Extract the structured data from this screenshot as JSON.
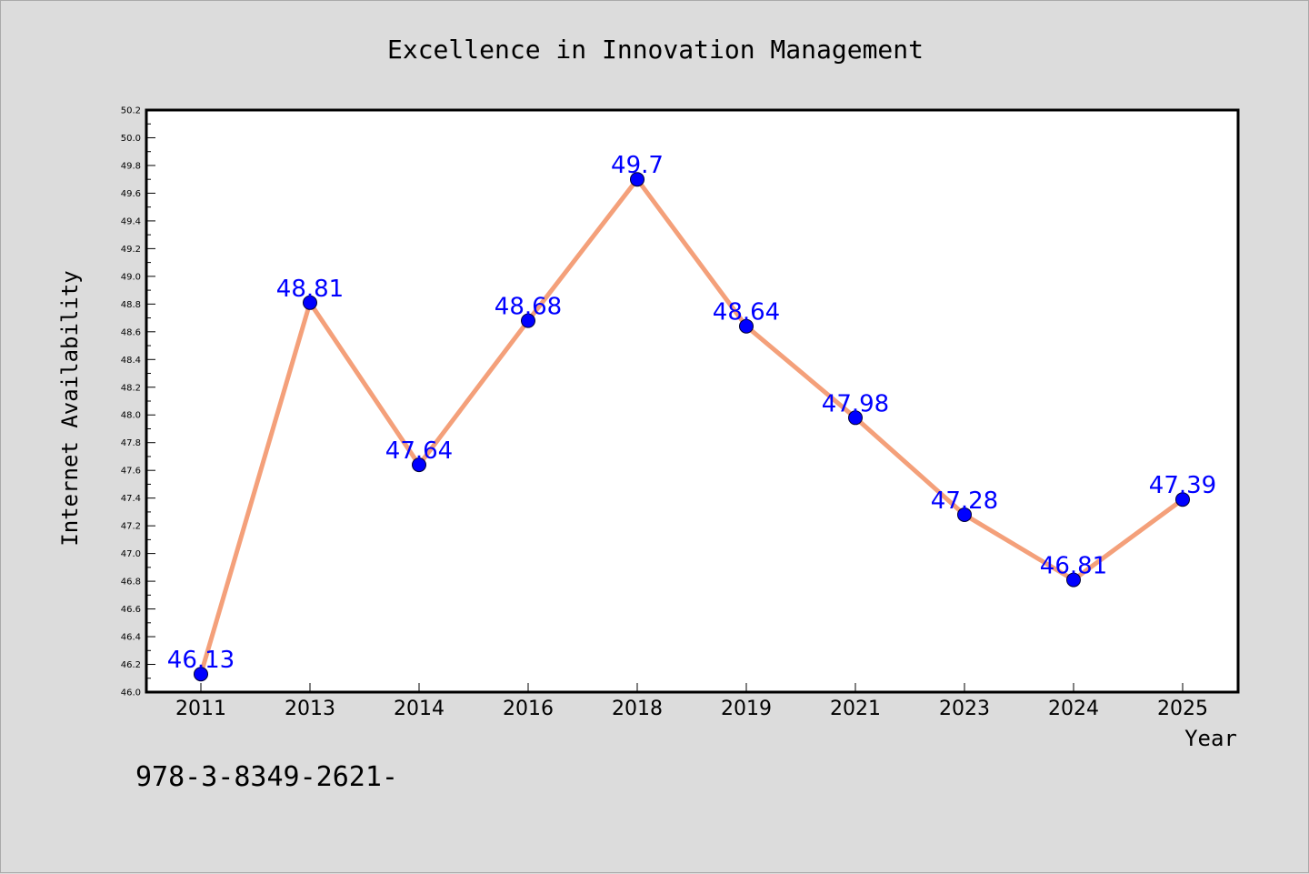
{
  "chart_data": {
    "type": "line",
    "title": "Excellence in Innovation Management",
    "xlabel": "Year",
    "ylabel": "Internet Availability",
    "categories": [
      "2011",
      "2013",
      "2014",
      "2016",
      "2018",
      "2019",
      "2021",
      "2023",
      "2024",
      "2025"
    ],
    "series": [
      {
        "values": [
          46.13,
          48.81,
          47.64,
          48.68,
          49.7,
          48.64,
          47.98,
          47.28,
          46.81,
          47.39
        ],
        "data_labels": [
          "46.13",
          "48.81",
          "47.64",
          "48.68",
          "49.7",
          "48.64",
          "47.98",
          "47.28",
          "46.81",
          "47.39"
        ]
      }
    ],
    "ylim": [
      46.0,
      50.2
    ],
    "yticks": [
      "46.0",
      "46.2",
      "46.4",
      "46.6",
      "46.8",
      "47.0",
      "47.2",
      "47.4",
      "47.6",
      "47.8",
      "48.0",
      "48.2",
      "48.4",
      "48.6",
      "48.8",
      "49.0",
      "49.2",
      "49.4",
      "49.6",
      "49.8",
      "50.0",
      "50.2"
    ],
    "grid": false,
    "colors": {
      "line": "#f4a07a",
      "marker": "#0000ff",
      "label": "#0000ff",
      "background": "#dcdcdc",
      "plot_background": "#ffffff"
    }
  },
  "footer_text": "978-3-8349-2621-"
}
